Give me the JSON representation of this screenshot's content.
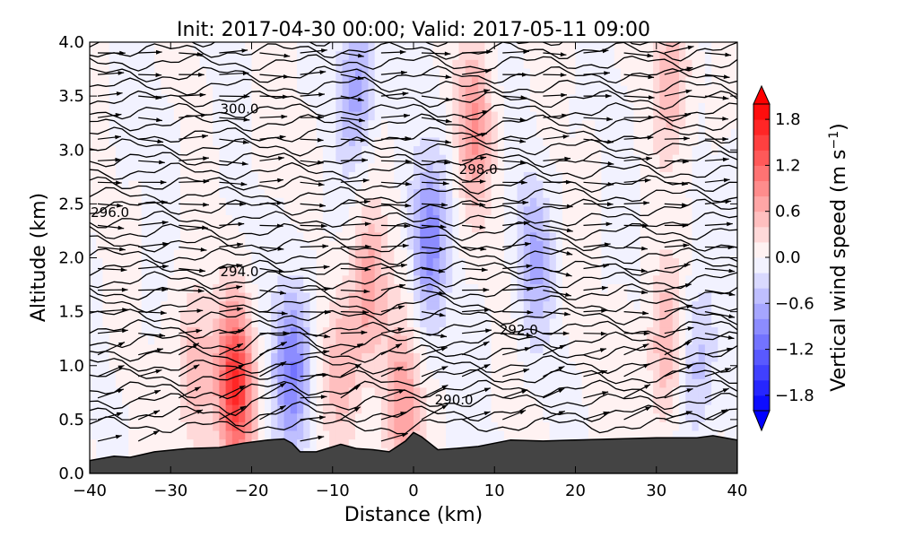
{
  "chart_data": {
    "type": "contour-vector-cross-section",
    "title": "Init: 2017-04-30 00:00; Valid: 2017-05-11 09:00",
    "xlabel": "Distance (km)",
    "ylabel": "Altitude (km)",
    "xlim": [
      -40,
      40
    ],
    "ylim": [
      0.0,
      4.0
    ],
    "x_ticks": [
      -40,
      -30,
      -20,
      -10,
      0,
      10,
      20,
      30,
      40
    ],
    "x_tick_labels": [
      "−40",
      "−30",
      "−20",
      "−10",
      "0",
      "10",
      "20",
      "30",
      "40"
    ],
    "y_ticks": [
      0.0,
      0.5,
      1.0,
      1.5,
      2.0,
      2.5,
      3.0,
      3.5,
      4.0
    ],
    "y_tick_labels": [
      "0.0",
      "0.5",
      "1.0",
      "1.5",
      "2.0",
      "2.5",
      "3.0",
      "3.5",
      "4.0"
    ],
    "colorbar": {
      "label": "Vertical wind speed (m s⁻¹)",
      "range": [
        -2.0,
        2.0
      ],
      "extend": "both",
      "ticks": [
        -1.8,
        -1.2,
        -0.6,
        0.0,
        0.6,
        1.2,
        1.8
      ],
      "tick_labels": [
        "−1.8",
        "−1.2",
        "−0.6",
        "0.0",
        "0.6",
        "1.2",
        "1.8"
      ],
      "colormap": "bwr",
      "levels": 20
    },
    "vertical_wind_features": [
      {
        "x": -22,
        "z": 0.8,
        "w": 1.6
      },
      {
        "x": -27,
        "z": 1.0,
        "w": 0.6
      },
      {
        "x": -9,
        "z": 0.9,
        "w": 0.5
      },
      {
        "x": -5.5,
        "z": 1.7,
        "w": 0.8
      },
      {
        "x": -1.5,
        "z": 0.6,
        "w": 0.8
      },
      {
        "x": 7.5,
        "z": 3.2,
        "w": 0.8
      },
      {
        "x": 31,
        "z": 1.2,
        "w": 0.6
      },
      {
        "x": 32,
        "z": 3.7,
        "w": 0.6
      },
      {
        "x": -15,
        "z": 1.0,
        "w": -1.0
      },
      {
        "x": 2,
        "z": 2.2,
        "w": -0.9
      },
      {
        "x": -7,
        "z": 3.6,
        "w": -0.7
      },
      {
        "x": 15,
        "z": 2.0,
        "w": -0.6
      },
      {
        "x": 35,
        "z": 1.0,
        "w": -0.5
      }
    ],
    "terrain_km": {
      "x": [
        -40,
        -37,
        -35,
        -32,
        -28,
        -24,
        -21,
        -18,
        -16,
        -15,
        -14,
        -12,
        -9,
        -7,
        -5,
        -3,
        -1,
        0,
        1,
        2,
        3,
        5,
        8,
        12,
        16,
        20,
        25,
        30,
        35,
        37,
        40
      ],
      "z": [
        0.12,
        0.16,
        0.15,
        0.2,
        0.23,
        0.24,
        0.28,
        0.31,
        0.32,
        0.28,
        0.2,
        0.2,
        0.27,
        0.23,
        0.22,
        0.2,
        0.3,
        0.38,
        0.34,
        0.28,
        0.22,
        0.23,
        0.25,
        0.31,
        0.3,
        0.31,
        0.32,
        0.33,
        0.33,
        0.35,
        0.31
      ]
    },
    "contour_labels": [
      {
        "text": "300.0",
        "x": -21.5,
        "z": 3.38
      },
      {
        "text": "298.0",
        "x": 8,
        "z": 2.82
      },
      {
        "text": "296.0",
        "x": -37.5,
        "z": 2.42
      },
      {
        "text": "294.0",
        "x": -21.5,
        "z": 1.87
      },
      {
        "text": "292.0",
        "x": 13,
        "z": 1.33
      },
      {
        "text": "290.0",
        "x": 5,
        "z": 0.68
      }
    ],
    "potential_temperature_K": {
      "base_value": 289.5,
      "interval": 0.5,
      "levels_count": 33
    },
    "wind_vectors": {
      "x_spacing_km": 5,
      "z_spacing_km": 0.2,
      "description": "predominantly westerly flow (left to right) with upward-tilted arrows near the surface"
    }
  }
}
